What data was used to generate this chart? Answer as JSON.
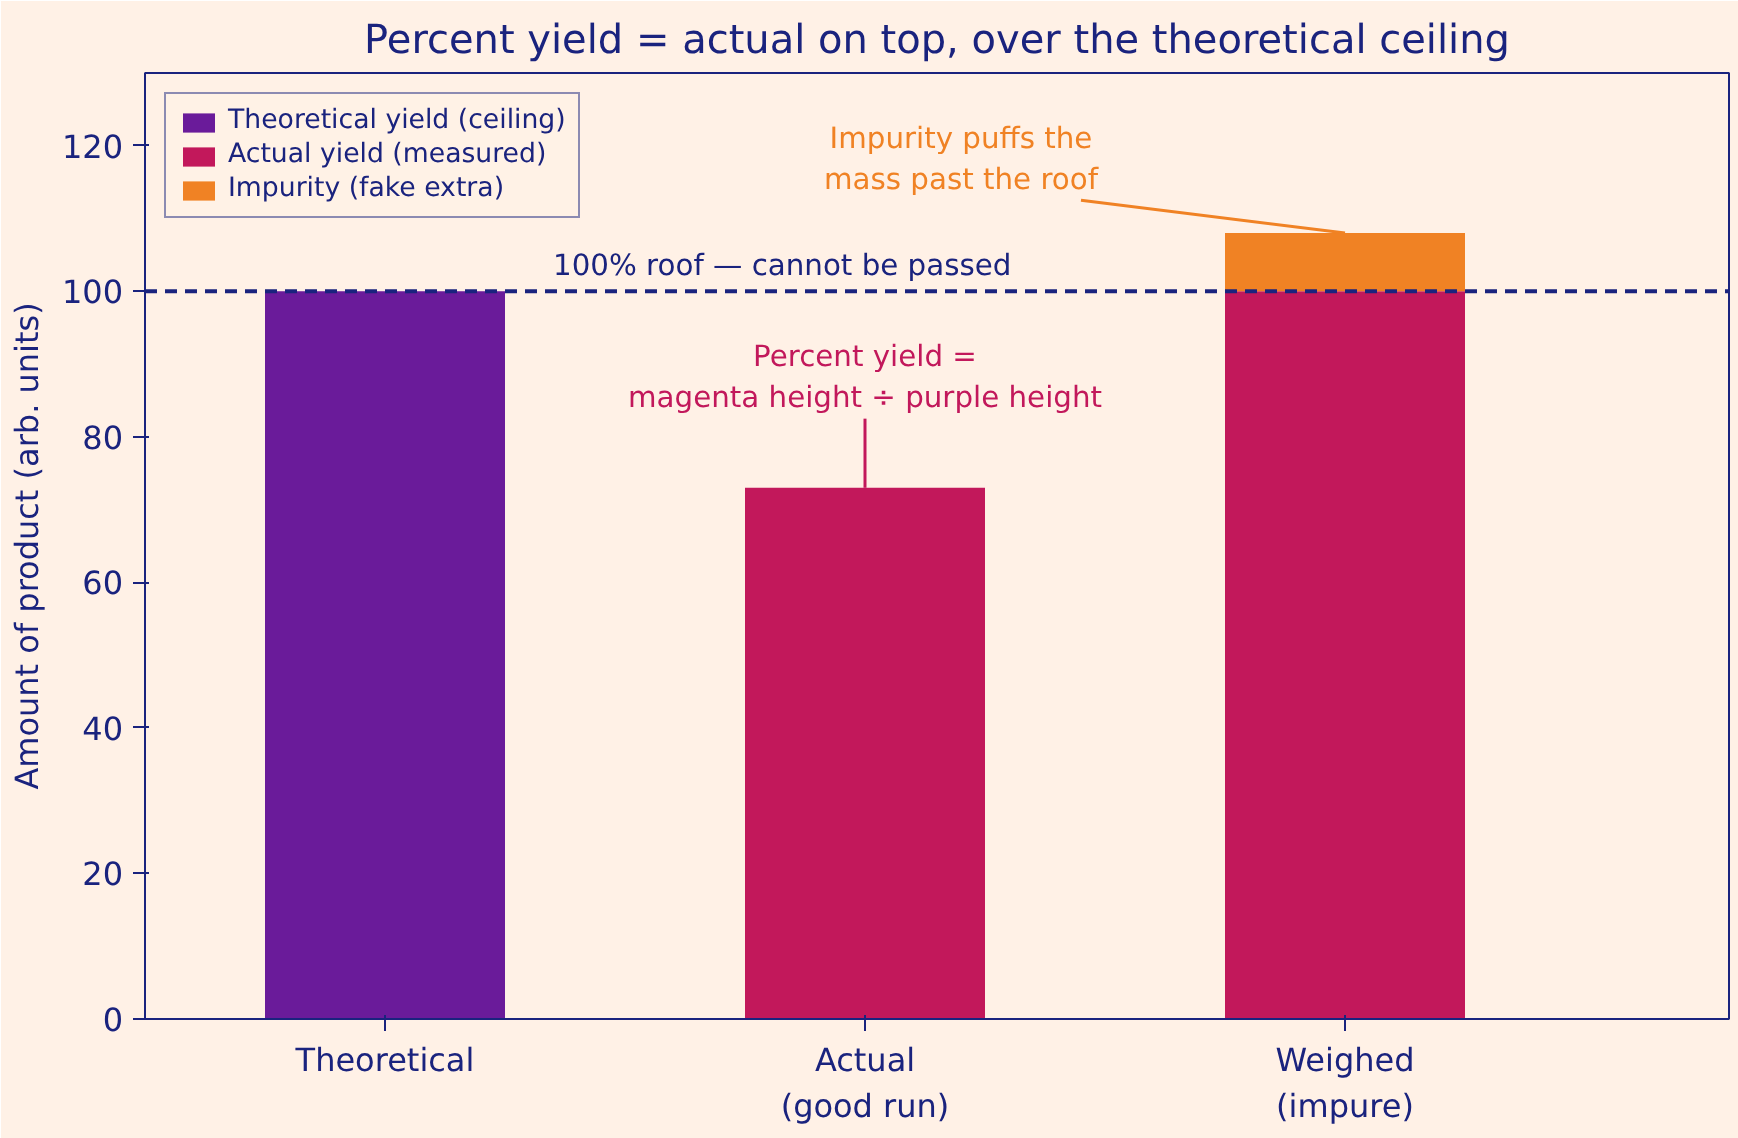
{
  "chart_data": {
    "type": "bar",
    "stacked": true,
    "title": "Percent yield = actual on top, over the theoretical ceiling",
    "ylabel": "Amount of product (arb. units)",
    "categories": [
      "Theoretical",
      "Actual\n(good run)",
      "Weighed\n(impure)"
    ],
    "series": [
      {
        "name": "Theoretical yield (ceiling)",
        "color": "#6a1b9a",
        "values": [
          100,
          null,
          null
        ]
      },
      {
        "name": "Actual yield (measured)",
        "color": "#c2185b",
        "values": [
          null,
          73,
          100
        ]
      },
      {
        "name": "Impurity (fake extra)",
        "color": "#f08224",
        "values": [
          null,
          null,
          8
        ]
      }
    ],
    "ylim": [
      0,
      130
    ],
    "yticks": [
      0,
      20,
      40,
      60,
      80,
      100,
      120
    ],
    "grid": false,
    "legend": "top left",
    "ref_lines": [
      {
        "axis": "y",
        "value": 100,
        "label": "100% roof — cannot be passed",
        "color": "#1a237e",
        "line_style": "dashed"
      }
    ],
    "annotations": [
      {
        "text": "Impurity puffs the\nmass past the roof",
        "x": "Weighed\n(impure)",
        "y": 108
      },
      {
        "text": "Percent yield =\nmagenta height ÷ purple height",
        "x": "Actual\n(good run)",
        "y": 73
      }
    ]
  }
}
